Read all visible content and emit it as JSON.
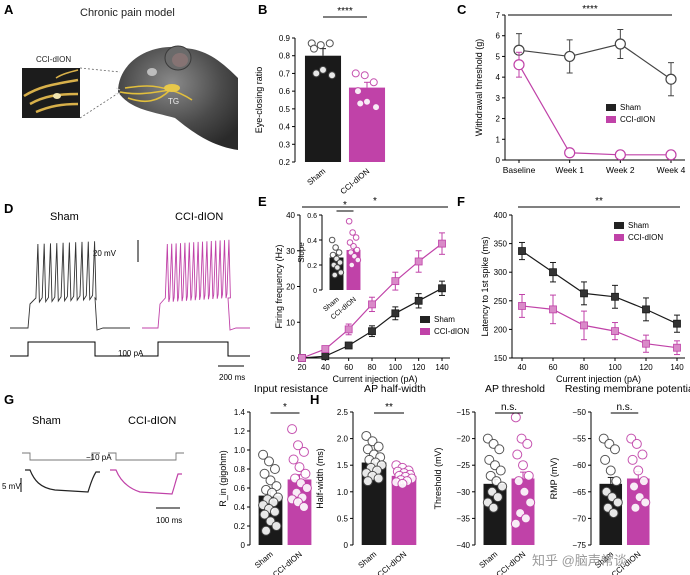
{
  "colors": {
    "sham": "#1a1a1a",
    "cci": "#c042a8",
    "grey": "#555555"
  },
  "panels": {
    "A": "A",
    "B": "B",
    "C": "C",
    "D": "D",
    "E": "E",
    "F": "F",
    "G": "G",
    "H": "H"
  },
  "panelA": {
    "title": "Chronic pain model",
    "inset_label": "CCI-dION",
    "tg_label": "TG"
  },
  "panelD": {
    "sham": "Sham",
    "cci": "CCI-dION",
    "voltage_scale": "20 mV",
    "current_label": "100 pA",
    "time_scale": "200 ms"
  },
  "panelG": {
    "sham": "Sham",
    "cci": "CCI-dION",
    "current_label": "−10 pA",
    "voltage_scale": "5 mV",
    "time_scale": "100 ms"
  },
  "chart_data": [
    {
      "id": "B",
      "type": "bar",
      "categories": [
        "Sham",
        "CCI-dION"
      ],
      "values": [
        0.8,
        0.62
      ],
      "errors": [
        0.04,
        0.03
      ],
      "ylabel": "Eye-closing ratio",
      "ylim": [
        0.2,
        0.9
      ],
      "yticks": [
        "0.2",
        "0.3",
        "0.4",
        "0.5",
        "0.6",
        "0.7",
        "0.8",
        "0.9"
      ],
      "significance": "****",
      "points": [
        [
          0.87,
          0.86,
          0.87,
          0.84,
          0.72,
          0.69,
          0.7
        ],
        [
          0.7,
          0.69,
          0.65,
          0.6,
          0.54,
          0.51,
          0.53
        ]
      ]
    },
    {
      "id": "C",
      "type": "line",
      "categories": [
        "Baseline",
        "Week 1",
        "Week 2",
        "Week 4"
      ],
      "ylabel": "Withdrawal threshold (g)",
      "ylim": [
        0,
        7
      ],
      "yticks": [
        "0",
        "1",
        "2",
        "3",
        "4",
        "5",
        "6",
        "7"
      ],
      "significance": "****",
      "series": [
        {
          "name": "Sham",
          "values": [
            5.3,
            5.0,
            5.6,
            3.9
          ],
          "errors": [
            0.8,
            0.8,
            0.7,
            0.8
          ]
        },
        {
          "name": "CCI-dION",
          "values": [
            4.6,
            0.35,
            0.25,
            0.25
          ],
          "errors": [
            0.6,
            0,
            0,
            0
          ]
        }
      ]
    },
    {
      "id": "E",
      "type": "line",
      "x": [
        20,
        40,
        60,
        80,
        100,
        120,
        140
      ],
      "xlabel": "Current injection (pA)",
      "ylabel": "Firing frequency (Hz)",
      "ylim": [
        0,
        40
      ],
      "yticks": [
        "0",
        "10",
        "20",
        "30",
        "40"
      ],
      "xticks": [
        "20",
        "40",
        "60",
        "80",
        "100",
        "120",
        "140"
      ],
      "significance": "*",
      "series": [
        {
          "name": "Sham",
          "values": [
            0,
            0.5,
            3.5,
            7.5,
            12.5,
            16,
            19.5
          ],
          "errors": [
            0,
            0.3,
            0.8,
            1.5,
            1.8,
            2,
            2
          ]
        },
        {
          "name": "CCI-dION",
          "values": [
            0,
            2.5,
            8,
            15,
            21.5,
            27,
            32
          ],
          "errors": [
            0,
            0.8,
            1.5,
            2,
            2.5,
            3,
            3
          ]
        }
      ],
      "inset": {
        "type": "bar",
        "categories": [
          "Sham",
          "CCI-dION"
        ],
        "values": [
          0.26,
          0.32
        ],
        "errors": [
          0.02,
          0.03
        ],
        "ylabel": "Slope",
        "ylim": [
          0,
          0.6
        ],
        "yticks": [
          "0",
          "0.2",
          "0.4",
          "0.6"
        ],
        "significance": "*",
        "points": [
          [
            0.4,
            0.34,
            0.3,
            0.28,
            0.25,
            0.22,
            0.2,
            0.18,
            0.14,
            0.12
          ],
          [
            0.55,
            0.46,
            0.42,
            0.38,
            0.35,
            0.32,
            0.3,
            0.27,
            0.24,
            0.2
          ]
        ]
      }
    },
    {
      "id": "F",
      "type": "line",
      "x": [
        40,
        60,
        80,
        100,
        120,
        140
      ],
      "xlabel": "Current injection (pA)",
      "ylabel": "Latency to 1st spike (ms)",
      "ylim": [
        150,
        400
      ],
      "yticks": [
        "150",
        "200",
        "250",
        "300",
        "350",
        "400"
      ],
      "xticks": [
        "40",
        "60",
        "80",
        "100",
        "120",
        "140"
      ],
      "significance": "**",
      "series": [
        {
          "name": "Sham",
          "values": [
            337,
            300,
            263,
            257,
            235,
            210
          ],
          "errors": [
            15,
            17,
            20,
            20,
            20,
            15
          ]
        },
        {
          "name": "CCI-dION",
          "values": [
            241,
            235,
            207,
            197,
            175,
            168
          ],
          "errors": [
            20,
            25,
            25,
            15,
            15,
            12
          ]
        }
      ]
    },
    {
      "id": "G",
      "type": "bar",
      "title": "Input resistance",
      "categories": [
        "Sham",
        "CCI-dION"
      ],
      "values": [
        0.52,
        0.69
      ],
      "errors": [
        0.05,
        0.05
      ],
      "ylabel": "R_in (gigohm)",
      "ylim": [
        0,
        1.4
      ],
      "yticks": [
        "0",
        "0.2",
        "0.4",
        "0.6",
        "0.8",
        "1.0",
        "1.2",
        "1.4"
      ],
      "significance": "*",
      "points": [
        [
          0.95,
          0.88,
          0.8,
          0.75,
          0.68,
          0.62,
          0.58,
          0.55,
          0.5,
          0.48,
          0.45,
          0.42,
          0.38,
          0.35,
          0.32,
          0.25,
          0.2,
          0.15
        ],
        [
          1.22,
          1.05,
          0.98,
          0.9,
          0.82,
          0.75,
          0.7,
          0.65,
          0.6,
          0.55,
          0.5,
          0.48,
          0.45,
          0.4
        ]
      ]
    },
    {
      "id": "H1",
      "type": "bar",
      "title": "AP half-width",
      "categories": [
        "Sham",
        "CCI-dION"
      ],
      "values": [
        1.55,
        1.3
      ],
      "errors": [
        0.06,
        0.04
      ],
      "ylabel": "Half-width (ms)",
      "ylim": [
        0,
        2.5
      ],
      "yticks": [
        "0",
        "0.5",
        "1.0",
        "1.5",
        "2.0",
        "2.5"
      ],
      "significance": "**",
      "points": [
        [
          2.05,
          1.95,
          1.85,
          1.8,
          1.7,
          1.65,
          1.6,
          1.55,
          1.5,
          1.45,
          1.4,
          1.35,
          1.3,
          1.25,
          1.2
        ],
        [
          1.5,
          1.45,
          1.4,
          1.38,
          1.35,
          1.32,
          1.3,
          1.28,
          1.25,
          1.22,
          1.2,
          1.18,
          1.15
        ]
      ]
    },
    {
      "id": "H2",
      "type": "bar",
      "title": "AP threshold",
      "categories": [
        "Sham",
        "CCI-dION"
      ],
      "values": [
        -28.5,
        -27.5
      ],
      "errors": [
        0.8,
        1.2
      ],
      "ylabel": "Threshold (mV)",
      "ylim": [
        -40,
        -15
      ],
      "yticks": [
        "−40",
        "−35",
        "−30",
        "−25",
        "−20",
        "−15"
      ],
      "significance": "n.s.",
      "points": [
        [
          -20,
          -21,
          -22,
          -24,
          -25,
          -26,
          -27,
          -28,
          -29,
          -30,
          -31,
          -32,
          -33
        ],
        [
          -16,
          -20,
          -21,
          -23,
          -25,
          -27,
          -28,
          -30,
          -32,
          -34,
          -35,
          -36
        ]
      ]
    },
    {
      "id": "H3",
      "type": "bar",
      "title": "Resting membrane potential",
      "categories": [
        "Sham",
        "CCI-dION"
      ],
      "values": [
        -63.5,
        -62.5
      ],
      "errors": [
        1.2,
        1.3
      ],
      "ylabel": "RMP (mV)",
      "ylim": [
        -75,
        -50
      ],
      "yticks": [
        "−75",
        "−70",
        "−65",
        "−60",
        "−55",
        "−50"
      ],
      "significance": "n.s.",
      "points": [
        [
          -55,
          -56,
          -57,
          -59,
          -61,
          -63,
          -65,
          -66,
          -67,
          -68,
          -69
        ],
        [
          -55,
          -56,
          -58,
          -59,
          -61,
          -63,
          -64,
          -66,
          -67,
          -68
        ]
      ]
    }
  ],
  "watermark": "知乎 @脑声常谈"
}
